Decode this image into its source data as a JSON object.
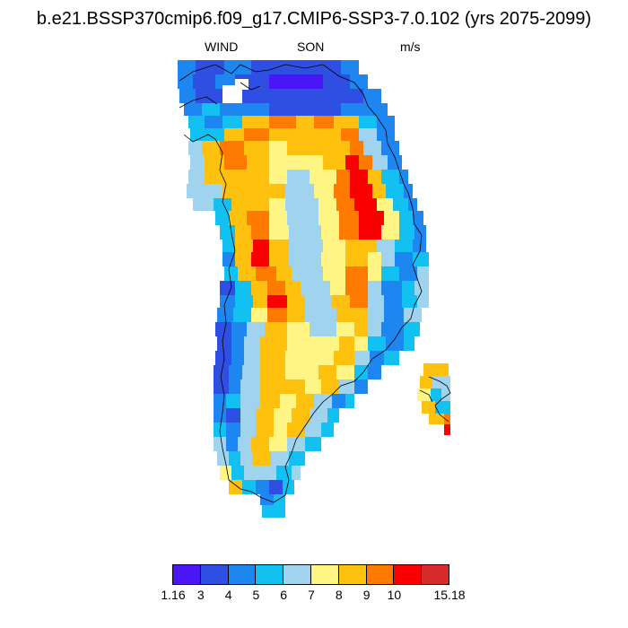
{
  "title": "b.e21.BSSP370cmip6.f09_g17.CMIP6-SSP3-7.0.102 (yrs 2075-2099)",
  "variable": "WIND",
  "season": "SON",
  "units": "m/s",
  "colorbar": {
    "colors": [
      "#4a16f5",
      "#2f4fe3",
      "#1e86f0",
      "#12c0f2",
      "#9fd3ee",
      "#fff584",
      "#fdc10e",
      "#ff7a00",
      "#fb0000",
      "#d72b2b"
    ],
    "labels": [
      "1.16",
      "3",
      "4",
      "5",
      "6",
      "7",
      "8",
      "9",
      "10",
      "15.18"
    ]
  },
  "colors": {
    "background": "#ffffff",
    "coastline": "#000000"
  }
}
